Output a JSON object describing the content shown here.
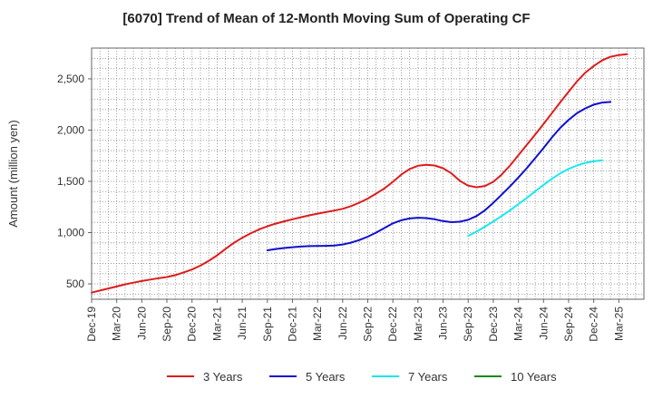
{
  "chart_data": {
    "type": "line",
    "title": "[6070]  Trend of Mean of 12-Month Moving Sum of Operating CF",
    "xlabel": "",
    "ylabel": "Amount (million yen)",
    "ylim": [
      350,
      2800
    ],
    "yticks": [
      500,
      1000,
      1500,
      2000,
      2500
    ],
    "ytick_labels": [
      "500",
      "1,000",
      "1,500",
      "2,000",
      "2,500"
    ],
    "x_start": "Dec-19",
    "x_months": 66,
    "xtick_labels": [
      "Dec-19",
      "Mar-20",
      "Jun-20",
      "Sep-20",
      "Dec-20",
      "Mar-21",
      "Jun-21",
      "Sep-21",
      "Dec-21",
      "Mar-22",
      "Jun-22",
      "Sep-22",
      "Dec-22",
      "Mar-23",
      "Jun-23",
      "Sep-23",
      "Dec-23",
      "Mar-24",
      "Jun-24",
      "Sep-24",
      "Dec-24",
      "Mar-25"
    ],
    "grid": true,
    "legend_position": "bottom",
    "series": [
      {
        "name": "3 Years",
        "color": "#dd1c1c",
        "start_month": 0,
        "values": [
          415,
          435,
          455,
          475,
          495,
          512,
          528,
          542,
          555,
          567,
          585,
          612,
          640,
          678,
          725,
          778,
          840,
          900,
          950,
          992,
          1030,
          1062,
          1088,
          1110,
          1130,
          1150,
          1168,
          1185,
          1200,
          1215,
          1232,
          1258,
          1292,
          1332,
          1380,
          1432,
          1495,
          1565,
          1620,
          1652,
          1662,
          1655,
          1628,
          1578,
          1505,
          1458,
          1442,
          1455,
          1495,
          1565,
          1655,
          1755,
          1855,
          1955,
          2060,
          2165,
          2270,
          2375,
          2475,
          2560,
          2625,
          2680,
          2715,
          2732,
          2740
        ]
      },
      {
        "name": "5 Years",
        "color": "#1010cc",
        "start_month": 21,
        "values": [
          828,
          840,
          850,
          858,
          864,
          868,
          870,
          871,
          874,
          884,
          902,
          928,
          960,
          1000,
          1045,
          1090,
          1120,
          1138,
          1145,
          1142,
          1130,
          1112,
          1102,
          1106,
          1125,
          1162,
          1218,
          1290,
          1370,
          1452,
          1538,
          1628,
          1725,
          1825,
          1928,
          2022,
          2100,
          2165,
          2212,
          2248,
          2268,
          2275
        ]
      },
      {
        "name": "7 Years",
        "color": "#19e8ee",
        "start_month": 45,
        "values": [
          968,
          1010,
          1058,
          1108,
          1162,
          1218,
          1278,
          1338,
          1402,
          1465,
          1525,
          1578,
          1622,
          1655,
          1680,
          1695,
          1705
        ]
      },
      {
        "name": "10 Years",
        "color": "#1a8a1a",
        "start_month": 0,
        "values": []
      }
    ]
  }
}
